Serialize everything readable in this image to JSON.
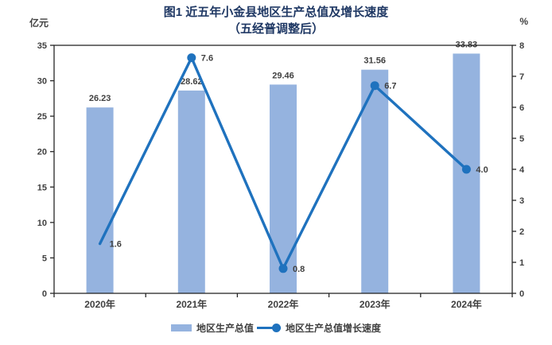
{
  "title": {
    "line1": "图1 近五年小金县地区生产总值及增长速度",
    "line2": "（五经普调整后）"
  },
  "colors": {
    "bar": "#95B3DF",
    "line": "#1F72BE",
    "title": "#1F3864",
    "label": "#404040",
    "axis": "#262626"
  },
  "chart_data": {
    "type": "combo-bar-line",
    "title": "图1 近五年小金县地区生产总值及增长速度（五经普调整后）",
    "categories": [
      "2020年",
      "2021年",
      "2022年",
      "2023年",
      "2024年"
    ],
    "series": [
      {
        "name": "地区生产总值",
        "type": "bar",
        "axis": "left",
        "values": [
          26.23,
          28.62,
          29.46,
          31.56,
          33.83
        ],
        "labels": [
          "26.23",
          "28.62",
          "29.46",
          "31.56",
          "33.83"
        ],
        "color": "#95B3DF"
      },
      {
        "name": "地区生产总值增长速度",
        "type": "line",
        "axis": "right",
        "values": [
          1.6,
          7.6,
          0.8,
          6.7,
          4.0
        ],
        "labels": [
          "1.6",
          "7.6",
          "0.8",
          "6.7",
          "4.0"
        ],
        "color": "#1F72BE",
        "marker": "circle",
        "first_point_marker": false
      }
    ],
    "left_axis": {
      "unit": "亿元",
      "min": 0,
      "max": 35,
      "step": 5
    },
    "right_axis": {
      "unit": "%",
      "min": 0,
      "max": 8,
      "step": 1
    },
    "grid": false,
    "legend_position": "bottom"
  }
}
